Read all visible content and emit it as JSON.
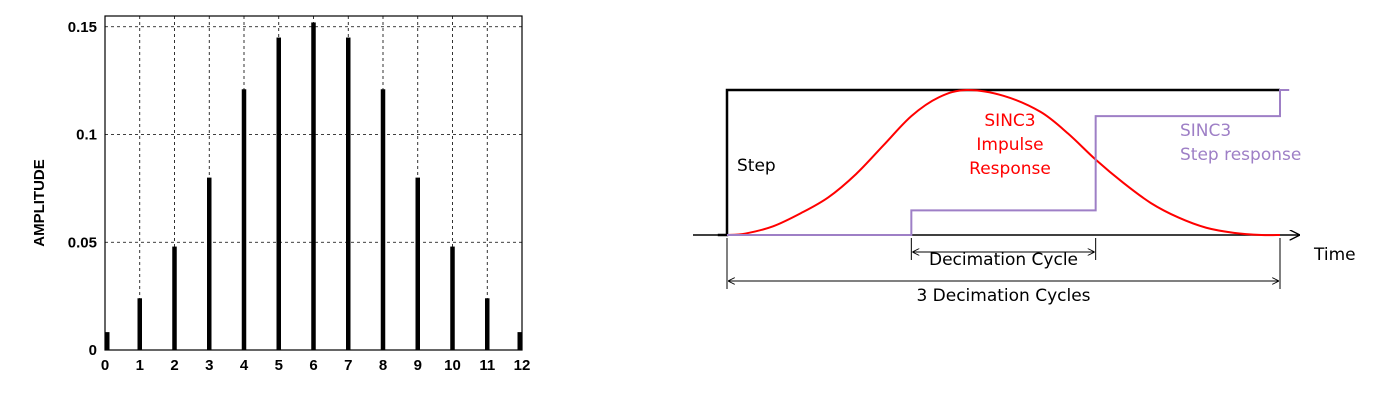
{
  "chart_data": [
    {
      "type": "bar",
      "ylabel": "AMPLITUDE",
      "xlabel": "",
      "categories": [
        "0",
        "1",
        "2",
        "3",
        "4",
        "5",
        "6",
        "7",
        "8",
        "9",
        "10",
        "11",
        "12"
      ],
      "values": [
        0.0083,
        0.024,
        0.048,
        0.08,
        0.121,
        0.145,
        0.152,
        0.145,
        0.121,
        0.08,
        0.048,
        0.024,
        0.0083
      ],
      "ylim": [
        0,
        0.155
      ],
      "yticks": [
        0,
        0.05,
        0.1,
        0.15
      ],
      "ytick_labels": [
        "0",
        "0.05",
        "0.1",
        "0.15"
      ],
      "grid": true,
      "grid_style": "dashed",
      "bar_color": "#000000"
    },
    {
      "type": "line",
      "xlabel": "Time",
      "xlim": [
        -0.1,
        3.2
      ],
      "ylim": [
        0,
        1
      ],
      "series": [
        {
          "name": "Step",
          "color": "#000000",
          "x": [
            -0.05,
            0,
            0,
            3
          ],
          "y": [
            0,
            0,
            1,
            1
          ]
        },
        {
          "name": "SINC3 Impulse Response",
          "label_lines": [
            "SINC3",
            "Impulse",
            "Response"
          ],
          "color": "#ff0000",
          "x": [
            0,
            0.1,
            0.25,
            0.4,
            0.55,
            0.7,
            0.85,
            1.0,
            1.15,
            1.3,
            1.5,
            1.7,
            1.85,
            2.0,
            2.15,
            2.3,
            2.45,
            2.6,
            2.75,
            2.9,
            3.0
          ],
          "y": [
            0,
            0.01,
            0.06,
            0.15,
            0.26,
            0.42,
            0.62,
            0.82,
            0.95,
            1.0,
            0.96,
            0.85,
            0.7,
            0.52,
            0.36,
            0.22,
            0.12,
            0.05,
            0.015,
            0.0,
            0.0
          ]
        },
        {
          "name": "SINC3 Step response",
          "label_lines": [
            "SINC3",
            "Step response"
          ],
          "color": "#9e7fc6",
          "x": [
            0,
            1,
            1,
            2,
            2,
            3,
            3,
            3.05
          ],
          "y": [
            0,
            0,
            0.17,
            0.17,
            0.82,
            0.82,
            1,
            1
          ]
        }
      ],
      "annotations": [
        {
          "text": "Decimation Cycle",
          "from": 1,
          "to": 2
        },
        {
          "text": "3 Decimation Cycles",
          "from": 0,
          "to": 3
        }
      ]
    }
  ]
}
